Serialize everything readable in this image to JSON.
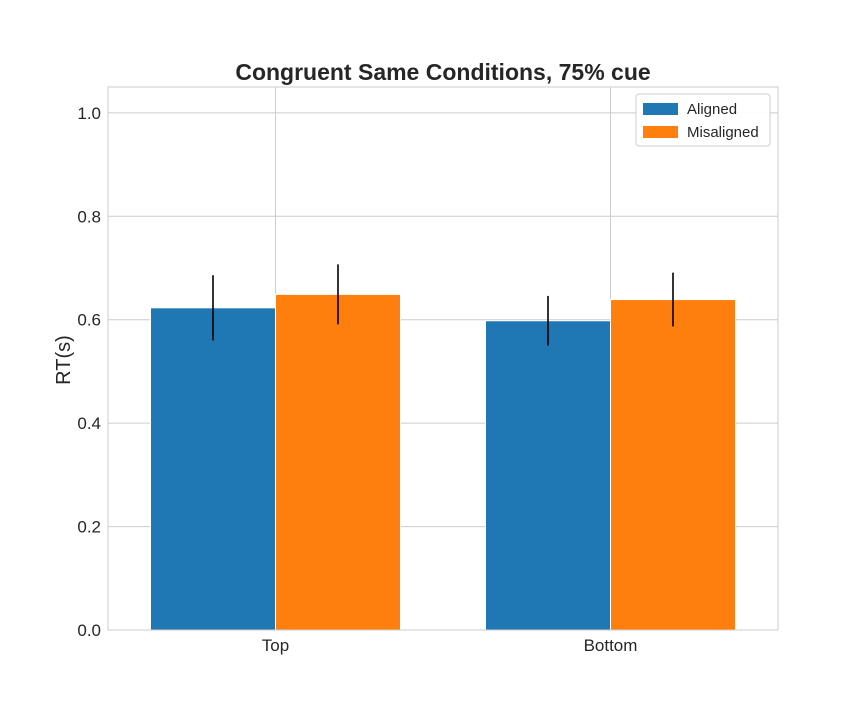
{
  "chart_data": {
    "type": "bar",
    "title": "Congruent Same Conditions, 75% cue",
    "xlabel": "",
    "ylabel": "RT(s)",
    "categories": [
      "Top",
      "Bottom"
    ],
    "ylim": [
      0,
      1.05
    ],
    "yticks": [
      "0.0",
      "0.2",
      "0.4",
      "0.6",
      "0.8",
      "1.0"
    ],
    "grid": true,
    "legend": {
      "position": "top-right"
    },
    "series": [
      {
        "name": "Aligned",
        "color": "#1f77b4",
        "values": [
          0.623,
          0.598
        ],
        "errors": [
          0.063,
          0.048
        ]
      },
      {
        "name": "Misaligned",
        "color": "#ff7f0e",
        "values": [
          0.649,
          0.639
        ],
        "errors": [
          0.058,
          0.052
        ]
      }
    ]
  }
}
